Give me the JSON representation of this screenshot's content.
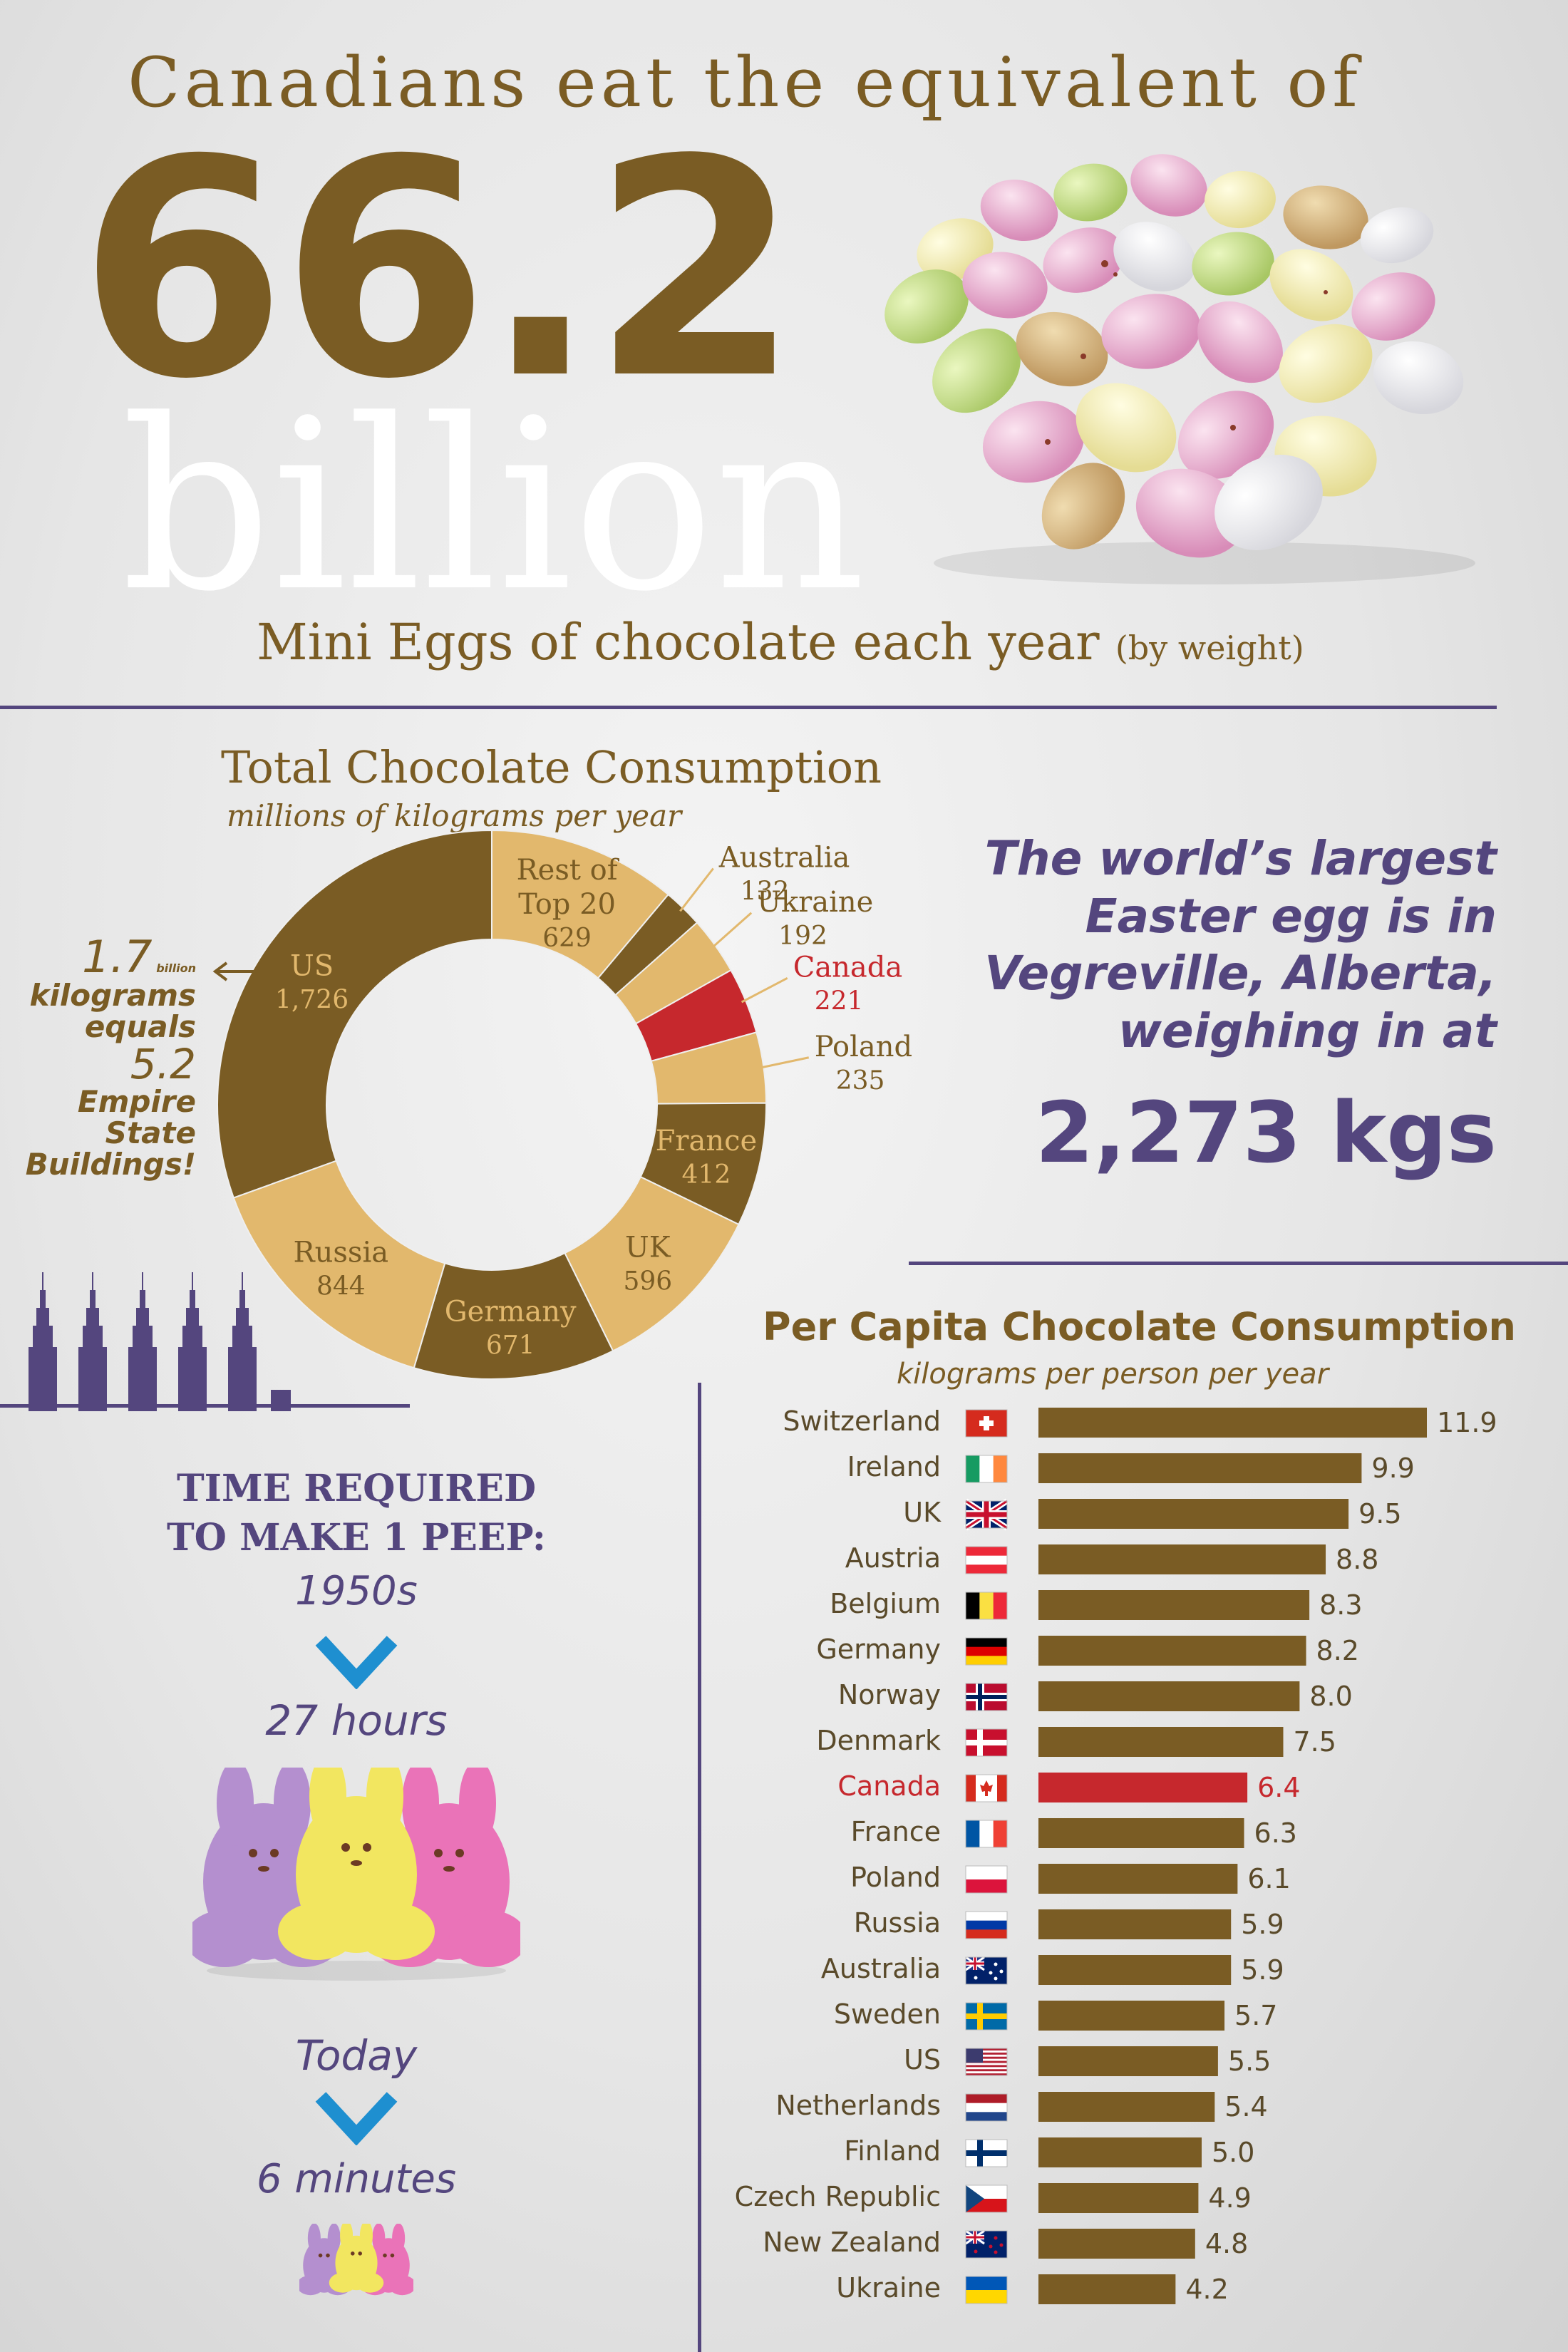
{
  "headline": "Canadians eat the equivalent of",
  "big_number": "66.2",
  "big_word": "billion",
  "mini_line": "Mini Eggs of chocolate each year",
  "mini_note": "(by weight)",
  "us_note": {
    "amount": "1.7",
    "amount_unit": "billion",
    "line2": "kilograms",
    "line3": "equals",
    "count": "5.2",
    "line5": "Empire",
    "line6": "State",
    "line7": "Buildings!"
  },
  "egg_fact": {
    "line1": "The world’s largest",
    "line2": "Easter egg is in",
    "line3": "Vegreville, Alberta,",
    "line4": "weighing in at",
    "weight": "2,273 kgs"
  },
  "peep": {
    "title_line1": "TIME REQUIRED",
    "title_line2": "TO MAKE 1 PEEP:",
    "era1": "1950s",
    "time1": "27 hours",
    "era2": "Today",
    "time2": "6 minutes"
  },
  "colors": {
    "brown": "#7a5c24",
    "tan": "#e2b86d",
    "red": "#c6282d",
    "purple": "#54467e",
    "arrow_blue": "#1e8fd0"
  },
  "chart_data": [
    {
      "type": "pie",
      "title": "Total Chocolate Consumption",
      "subtitle": "millions of kilograms per year",
      "categories": [
        "Rest of Top 20",
        "Australia",
        "Ukraine",
        "Canada",
        "Poland",
        "France",
        "UK",
        "Germany",
        "Russia",
        "US"
      ],
      "values": [
        629,
        132,
        192,
        221,
        235,
        412,
        596,
        671,
        844,
        1726
      ],
      "value_labels": [
        "629",
        "132",
        "192",
        "221",
        "235",
        "412",
        "596",
        "671",
        "844",
        "1,726"
      ],
      "colors": [
        "#e2b86d",
        "#7a5c24",
        "#e2b86d",
        "#c6282d",
        "#e2b86d",
        "#7a5c24",
        "#e2b86d",
        "#7a5c24",
        "#e2b86d",
        "#7a5c24"
      ],
      "label_colors": [
        "#7a5c24",
        "#7a5c24",
        "#7a5c24",
        "#c6282d",
        "#7a5c24",
        "#e2b86d",
        "#7a5c24",
        "#e2b86d",
        "#7a5c24",
        "#e2b86d"
      ],
      "label_outside": [
        false,
        true,
        true,
        true,
        true,
        false,
        false,
        false,
        false,
        false
      ],
      "donut": true
    },
    {
      "type": "bar",
      "orientation": "horizontal",
      "title": "Per Capita Chocolate Consumption",
      "subtitle": "kilograms per person per year",
      "categories": [
        "Switzerland",
        "Ireland",
        "UK",
        "Austria",
        "Belgium",
        "Germany",
        "Norway",
        "Denmark",
        "Canada",
        "France",
        "Poland",
        "Russia",
        "Australia",
        "Sweden",
        "US",
        "Netherlands",
        "Finland",
        "Czech Republic",
        "New Zealand",
        "Ukraine"
      ],
      "values": [
        11.9,
        9.9,
        9.5,
        8.8,
        8.3,
        8.2,
        8.0,
        7.5,
        6.4,
        6.3,
        6.1,
        5.9,
        5.9,
        5.7,
        5.5,
        5.4,
        5.0,
        4.9,
        4.8,
        4.2
      ],
      "value_labels": [
        "11.9",
        "9.9",
        "9.5",
        "8.8",
        "8.3",
        "8.2",
        "8.0",
        "7.5",
        "6.4",
        "6.3",
        "6.1",
        "5.9",
        "5.9",
        "5.7",
        "5.5",
        "5.4",
        "5.0",
        "4.9",
        "4.8",
        "4.2"
      ],
      "flags": [
        "switzerland-flag",
        "ireland-flag",
        "uk-flag",
        "austria-flag",
        "belgium-flag",
        "germany-flag",
        "norway-flag",
        "denmark-flag",
        "canada-flag",
        "france-flag",
        "poland-flag",
        "russia-flag",
        "australia-flag",
        "sweden-flag",
        "us-flag",
        "netherlands-flag",
        "finland-flag",
        "czech-republic-flag",
        "new-zealand-flag",
        "ukraine-flag"
      ],
      "highlight": "Canada",
      "xlim": [
        0,
        12
      ]
    }
  ]
}
